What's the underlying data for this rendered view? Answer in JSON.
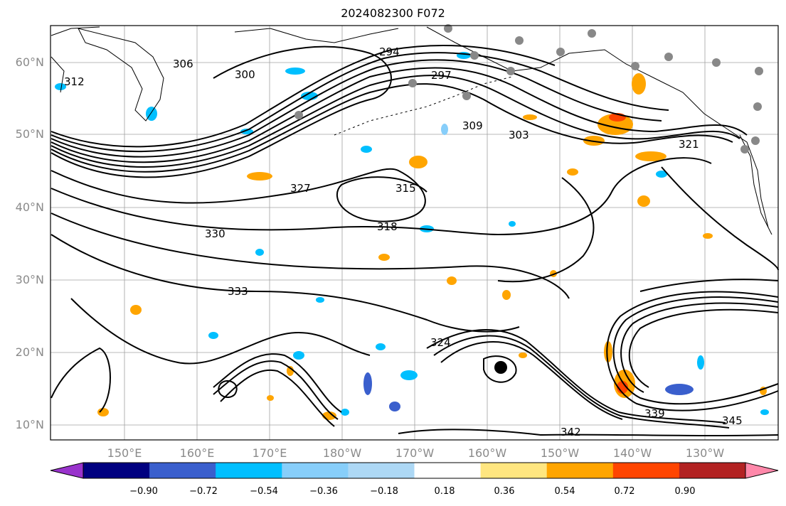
{
  "title": "2024082300 F072",
  "map": {
    "lat_labels": [
      "60°N",
      "50°N",
      "40°N",
      "30°N",
      "20°N",
      "10°N"
    ],
    "lon_labels": [
      "150°E",
      "160°E",
      "170°E",
      "180°W",
      "170°W",
      "160°W",
      "150°W",
      "140°W",
      "130°W"
    ],
    "contour_labels": [
      "294",
      "297",
      "300",
      "303",
      "306",
      "309",
      "312",
      "315",
      "318",
      "321",
      "324",
      "327",
      "330",
      "333",
      "339",
      "342",
      "345"
    ],
    "contour_color": "#000000",
    "land_color": "#000000",
    "grid_color": "#a0a0a0",
    "station_marker_color": "#888888",
    "storm_marker_color": "#000000"
  },
  "colorbar": {
    "colors": [
      "#9933cc",
      "#000080",
      "#3a5fcd",
      "#00bfff",
      "#87cefa",
      "#add8f5",
      "#ffffff",
      "#ffe680",
      "#ffa500",
      "#ff4500",
      "#b22222",
      "#ff88aa"
    ],
    "tick_labels": [
      "−0.90",
      "−0.72",
      "−0.54",
      "−0.36",
      "−0.18",
      "0.18",
      "0.36",
      "0.54",
      "0.72",
      "0.90"
    ],
    "extend": "both"
  }
}
